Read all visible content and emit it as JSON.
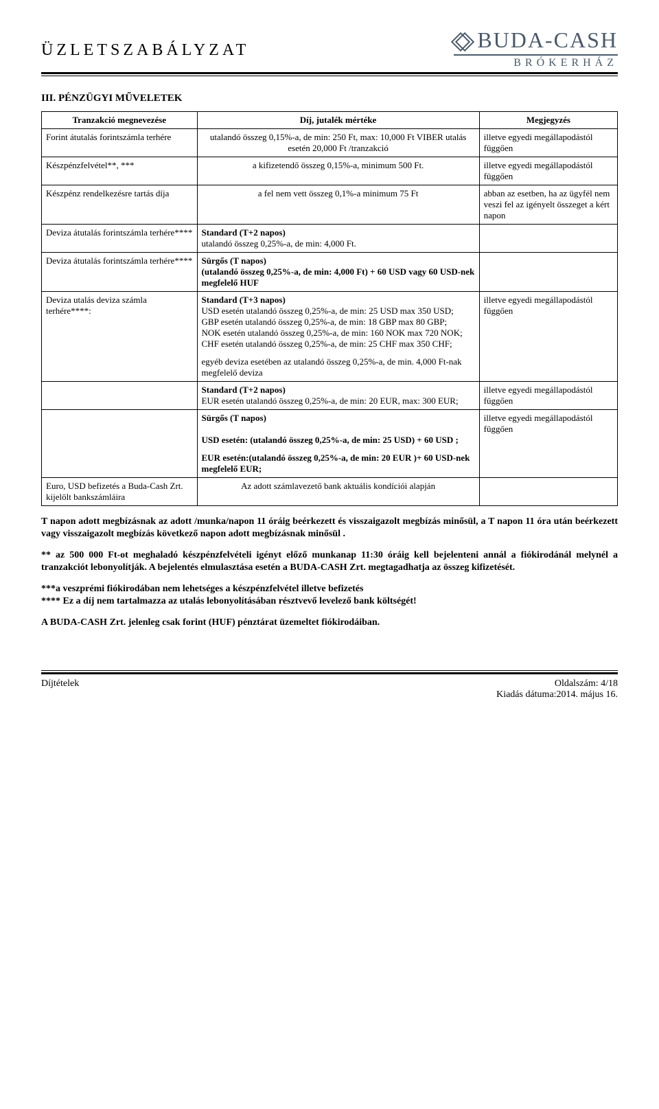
{
  "header": {
    "doc_title": "ÜZLETSZABÁLYZAT",
    "brand_name": "BUDA-CASH",
    "brand_sub": "BRÓKERHÁZ"
  },
  "section": {
    "heading": "III. PÉNZÜGYI MŰVELETEK"
  },
  "table": {
    "headers": {
      "c1": "Tranzakció megnevezése",
      "c2": "Díj, jutalék mértéke",
      "c3": "Megjegyzés"
    },
    "r1": {
      "c1": "Forint átutalás forintszámla terhére",
      "c2": "utalandó összeg 0,15%-a, de min: 250 Ft, max: 10,000 Ft VIBER utalás esetén 20,000 Ft /tranzakció",
      "c3": "illetve egyedi megállapodástól függően"
    },
    "r2": {
      "c1": "Készpénzfelvétel**, ***",
      "c2": "a kifizetendő összeg 0,15%-a, minimum 500 Ft.",
      "c3": "illetve egyedi megállapodástól függően"
    },
    "r3": {
      "c1": "Készpénz rendelkezésre tartás díja",
      "c2": "a fel nem vett összeg 0,1%-a minimum 75 Ft",
      "c3": "abban az esetben, ha az ügyfél nem veszi fel az igényelt összeget a kért napon"
    },
    "r4": {
      "c1": "Deviza átutalás forintszámla terhére****",
      "c2_l1": "Standard (T+2 napos)",
      "c2_l2": "utalandó összeg 0,25%-a, de min: 4,000 Ft.",
      "c3": ""
    },
    "r5": {
      "c1": "Deviza átutalás forintszámla terhére****",
      "c2_l1": "Sürgős (T napos)",
      "c2_l2": "(utalandó összeg 0,25%-a, de min: 4,000 Ft)  +  60 USD vagy 60 USD-nek megfelelő HUF",
      "c3": ""
    },
    "r6": {
      "c1": "Deviza utalás deviza számla terhére****:",
      "c2_block1_l1": "Standard (T+3 napos)",
      "c2_block1_l2": "USD esetén utalandó összeg 0,25%-a, de min: 25 USD max 350 USD;",
      "c2_block1_l3": "GBP esetén utalandó összeg 0,25%-a, de min: 18 GBP max 80 GBP;",
      "c2_block1_l4": "NOK esetén utalandó összeg 0,25%-a, de min: 160 NOK max 720 NOK;",
      "c2_block1_l5": "CHF esetén utalandó összeg 0,25%-a, de min: 25 CHF max 350 CHF;",
      "c2_block2": "egyéb deviza esetében az utalandó összeg 0,25%-a, de min. 4,000 Ft-nak megfelelő deviza",
      "c3": "illetve egyedi megállapodástól függően"
    },
    "r7": {
      "c1": "",
      "c2_l1": "Standard (T+2 napos)",
      "c2_l2": "EUR esetén utalandó összeg 0,25%-a, de min: 20 EUR, max: 300 EUR;",
      "c3": "illetve egyedi megállapodástól függően"
    },
    "r8": {
      "c1": "",
      "c2_block1_l1": "Sürgős (T napos)",
      "c2_block1_l2": "USD esetén: (utalandó összeg 0,25%-a, de min: 25 USD) +  60 USD ;",
      "c2_block2": "EUR esetén:(utalandó összeg 0,25%-a, de min: 20 EUR )+ 60 USD-nek megfelelő EUR;",
      "c3": "illetve egyedi megállapodástól függően"
    },
    "r9": {
      "c1": "Euro, USD befizetés a Buda-Cash Zrt. kijelölt bankszámláira",
      "c2": "Az adott számlavezető bank aktuális kondíciói alapján",
      "c3": ""
    }
  },
  "paragraphs": {
    "p1": "T napon adott megbízásnak az adott /munka/napon 11 óráig beérkezett és visszaigazolt megbízás minősül, a T napon 11 óra után beérkezett vagy visszaigazolt megbízás következő napon adott megbízásnak minősül .",
    "p2": "** az 500 000 Ft-ot meghaladó készpénzfelvételi igényt előző munkanap 11:30 óráig  kell bejelenteni annál a fiókirodánál melynél a tranzakciót lebonyolítják. A bejelentés elmulasztása esetén a BUDA-CASH Zrt. megtagadhatja az összeg kifizetését.",
    "p3": "***a veszprémi fiókirodában nem lehetséges a készpénzfelvétel illetve befizetés",
    "p4": "**** Ez a díj nem tartalmazza az utalás lebonyolításában résztvevő levelező bank költségét!",
    "p5": "A BUDA-CASH Zrt. jelenleg csak forint (HUF) pénztárat üzemeltet fiókirodáiban."
  },
  "footer": {
    "left": "Díjtételek",
    "right_l1": "Oldalszám: 4/18",
    "right_l2": "Kiadás dátuma:2014. május 16."
  },
  "colors": {
    "text": "#000000",
    "brand": "#4a5a6a",
    "background": "#ffffff"
  }
}
